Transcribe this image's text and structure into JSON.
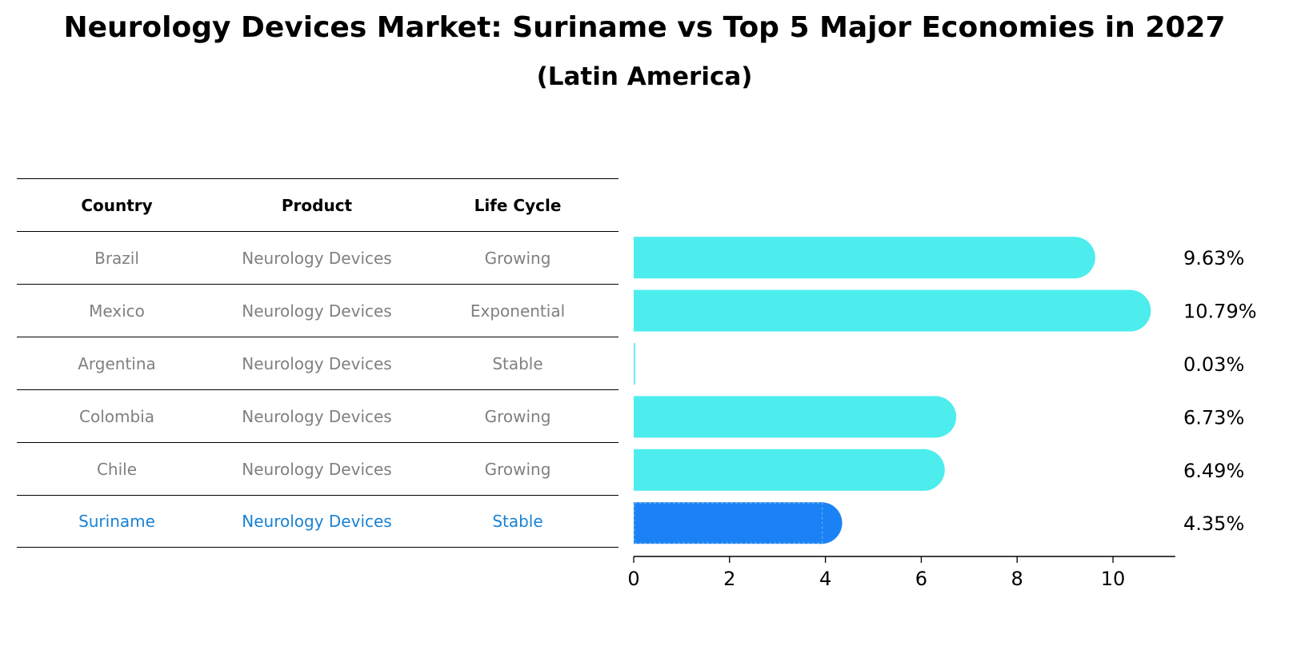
{
  "title": "Neurology Devices Market: Suriname vs Top 5 Major Economies in 2027",
  "subtitle": "(Latin America)",
  "table": {
    "headers": [
      "Country",
      "Product",
      "Life Cycle"
    ],
    "rows": [
      [
        "Brazil",
        "Neurology Devices",
        "Growing"
      ],
      [
        "Mexico",
        "Neurology Devices",
        "Exponential"
      ],
      [
        "Argentina",
        "Neurology Devices",
        "Stable"
      ],
      [
        "Colombia",
        "Neurology Devices",
        "Growing"
      ],
      [
        "Chile",
        "Neurology Devices",
        "Growing"
      ],
      [
        "Suriname",
        "Neurology Devices",
        "Stable"
      ]
    ],
    "highlight_index": 5
  },
  "chart_data": {
    "type": "bar",
    "orientation": "horizontal",
    "title": "Neurology Devices Market: Suriname vs Top 5 Major Economies in 2027",
    "subtitle": "(Latin America)",
    "categories": [
      "Brazil",
      "Mexico",
      "Argentina",
      "Colombia",
      "Chile",
      "Suriname"
    ],
    "values": [
      9.63,
      10.79,
      0.03,
      6.73,
      6.49,
      4.35
    ],
    "value_labels": [
      "9.63%",
      "10.79%",
      "0.03%",
      "6.73%",
      "6.49%",
      "4.35%"
    ],
    "xlim": [
      0,
      11.3
    ],
    "xticks": [
      "0",
      "2",
      "4",
      "6",
      "8",
      "10"
    ],
    "xlabel": "",
    "ylabel": "",
    "colors": {
      "default": "#4deded",
      "highlight": "#1a82f4",
      "highlight_text": "#1a82d4"
    },
    "highlight": "Suriname"
  }
}
